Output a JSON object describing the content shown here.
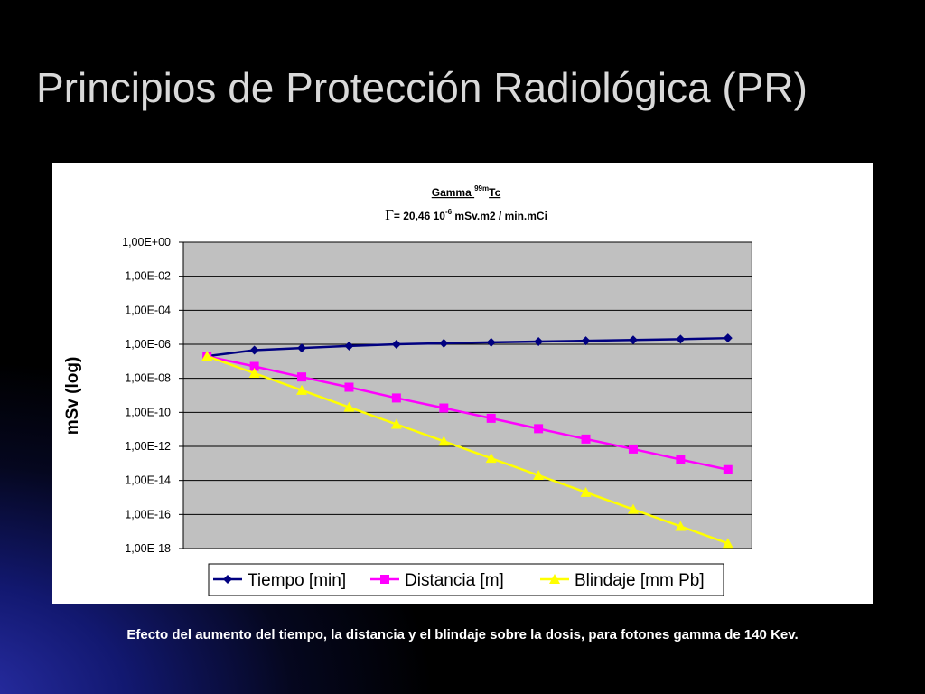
{
  "slide": {
    "title": "Principios de Protección Radiológica (PR)",
    "caption": "Efecto del aumento del tiempo, la distancia y el blindaje sobre la dosis, para fotones gamma de 140 Kev."
  },
  "chart_data": {
    "type": "line",
    "title": "Gamma 99mTc",
    "title_parts": {
      "prefix": "Gamma ",
      "superscript": "99m",
      "suffix": "Tc"
    },
    "subtitle": "Γ= 20,46 10-6 mSv.m2 / min.mCi",
    "subtitle_parts": {
      "gamma": "Γ",
      "before": "= 20,46 10",
      "superscript": "-6",
      "after": " mSv.m2 / min.mCi"
    },
    "xlabel": "",
    "ylabel": "mSv (log)",
    "y_scale": "log",
    "ylim": [
      1e-18,
      1
    ],
    "y_ticks": [
      "1,00E+00",
      "1,00E-02",
      "1,00E-04",
      "1,00E-06",
      "1,00E-08",
      "1,00E-10",
      "1,00E-12",
      "1,00E-14",
      "1,00E-16",
      "1,00E-18"
    ],
    "x_points": 12,
    "grid": true,
    "legend_position": "bottom",
    "series": [
      {
        "name": "Tiempo [min]",
        "color": "#000080",
        "marker": "diamond",
        "values": [
          2e-07,
          4.5e-07,
          6e-07,
          8e-07,
          1e-06,
          1.15e-06,
          1.3e-06,
          1.45e-06,
          1.6e-06,
          1.8e-06,
          2e-06,
          2.3e-06
        ]
      },
      {
        "name": "Distancia [m]",
        "color": "#ff00ff",
        "marker": "square",
        "values": [
          2e-07,
          5e-08,
          1.2e-08,
          3e-09,
          7e-10,
          1.8e-10,
          4.5e-11,
          1.1e-11,
          2.7e-12,
          7e-13,
          1.7e-13,
          4.3e-14
        ]
      },
      {
        "name": "Blindaje [mm Pb]",
        "color": "#ffff00",
        "marker": "triangle",
        "values": [
          2e-07,
          2e-08,
          2e-09,
          2e-10,
          2e-11,
          2e-12,
          2e-13,
          2e-14,
          2e-15,
          2e-16,
          2e-17,
          2e-18
        ]
      }
    ]
  }
}
